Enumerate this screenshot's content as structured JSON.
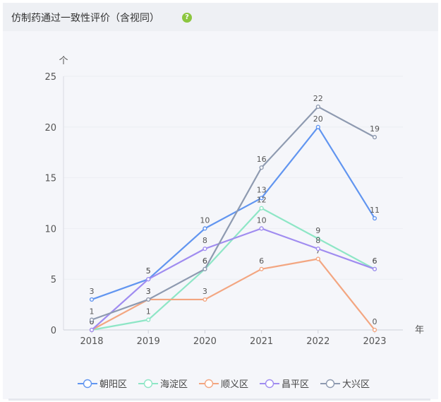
{
  "header": {
    "title": "仿制药通过一致性评价（含视同）",
    "help_icon": "?"
  },
  "chart_data": {
    "type": "line",
    "x": [
      "2018",
      "2019",
      "2020",
      "2021",
      "2022",
      "2023"
    ],
    "ylim": [
      0,
      25
    ],
    "yticks": [
      0,
      5,
      10,
      15,
      20,
      25
    ],
    "ylabel": "个",
    "xlabel": "年",
    "legend_position": "bottom-center",
    "grid": true,
    "series": [
      {
        "name": "朝阳区",
        "color": "#6195f0",
        "values": [
          3,
          5,
          10,
          13,
          20,
          11
        ]
      },
      {
        "name": "海淀区",
        "color": "#8ee6c6",
        "values": [
          0,
          1,
          6,
          12,
          9,
          6
        ]
      },
      {
        "name": "顺义区",
        "color": "#f3a681",
        "values": [
          0,
          3,
          3,
          6,
          7,
          0
        ]
      },
      {
        "name": "昌平区",
        "color": "#a08cf0",
        "values": [
          0,
          5,
          8,
          10,
          8,
          6
        ]
      },
      {
        "name": "大兴区",
        "color": "#8e9ab0",
        "values": [
          1,
          3,
          6,
          16,
          22,
          19
        ]
      }
    ]
  }
}
